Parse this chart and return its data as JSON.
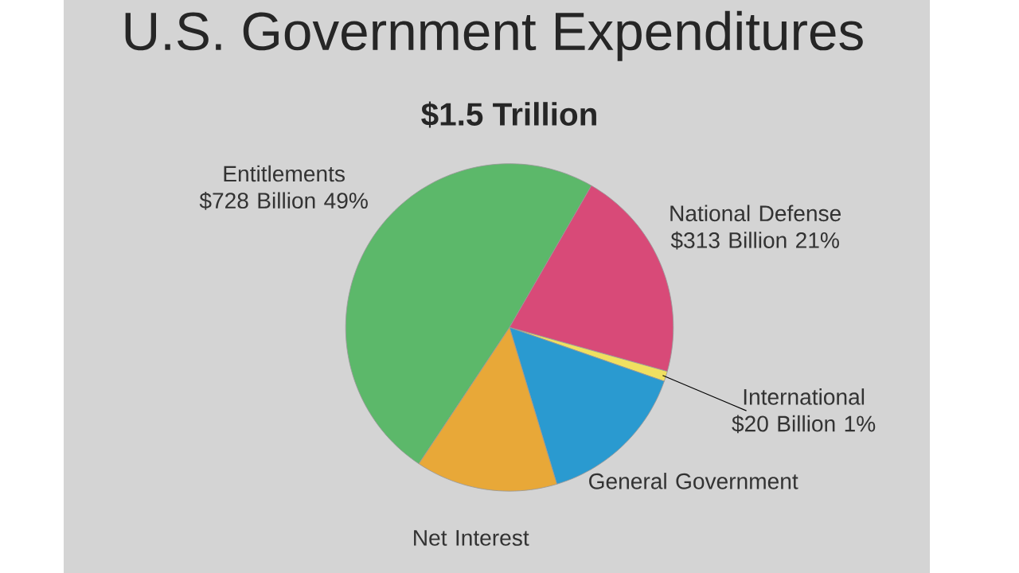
{
  "chart_data": {
    "type": "pie",
    "title": "U.S. Government Expenditures",
    "subtitle": "$1.5 Trillion",
    "categories": [
      "Entitlements",
      "National Defense",
      "International",
      "General Government",
      "Net Interest"
    ],
    "values": [
      49,
      21,
      1,
      15,
      14
    ],
    "colors": [
      "#5cb86a",
      "#d84a78",
      "#f0e060",
      "#2a9ad0",
      "#e8a838"
    ],
    "value_labels": [
      "$728 Billion 49%",
      "$313 Billion 21%",
      "$20 Billion 1%",
      null,
      null
    ]
  }
}
